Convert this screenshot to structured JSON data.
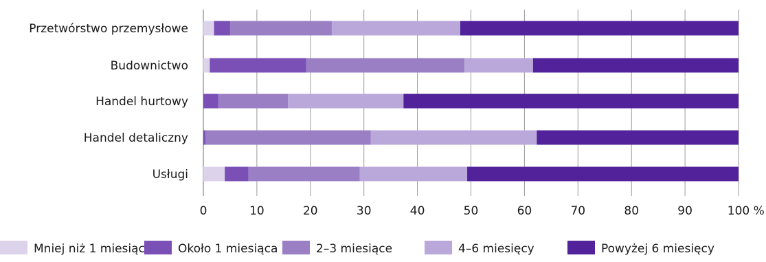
{
  "chart_data": {
    "type": "bar",
    "orientation": "horizontal",
    "stacked": true,
    "categories": [
      "Przetwórstwo przemysłowe",
      "Budownictwo",
      "Handel hurtowy",
      "Handel detaliczny",
      "Usługi"
    ],
    "series": [
      {
        "name": "Mniej niż 1 miesiąc",
        "color": "#dcd3eb",
        "values": [
          2.0,
          1.2,
          0.0,
          0.0,
          4.0
        ]
      },
      {
        "name": "Około 1 miesiąca",
        "color": "#7a4fb6",
        "values": [
          3.0,
          18.0,
          2.8,
          0.4,
          4.4
        ]
      },
      {
        "name": "2–3 miesiące",
        "color": "#9b7fc4",
        "values": [
          19.0,
          29.6,
          13.0,
          30.9,
          20.8
        ]
      },
      {
        "name": "4–6 miesięcy",
        "color": "#bba8db",
        "values": [
          24.0,
          12.8,
          21.6,
          31.0,
          20.1
        ]
      },
      {
        "name": "Powyżej 6 miesięcy",
        "color": "#51229a",
        "values": [
          52.0,
          38.4,
          62.6,
          37.7,
          50.7
        ]
      }
    ],
    "x_ticks": [
      "0",
      "10",
      "20",
      "30",
      "40",
      "50",
      "60",
      "70",
      "80",
      "90",
      "100 %"
    ],
    "xlim": [
      0,
      100
    ],
    "grid": true,
    "legend_position": "bottom"
  }
}
